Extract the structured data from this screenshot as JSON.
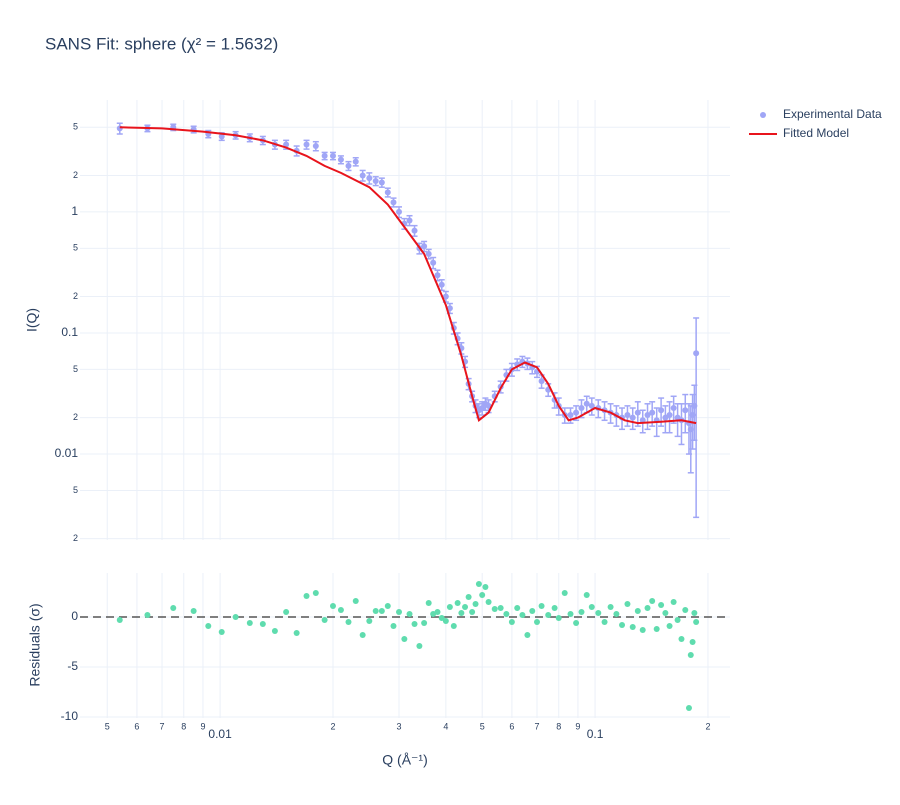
{
  "chart_data": [
    {
      "type": "scatter",
      "title": "SANS Fit: sphere (χ² = 1.5632)",
      "y_label": "I(Q)",
      "log_x": true,
      "log_y": true,
      "grid": true,
      "legend": "top-right",
      "xlim": [
        0.00423,
        0.229
      ],
      "ylim": [
        0.00195,
        8.4
      ],
      "yticks": [
        5,
        2,
        1,
        {
          "value": 0.5,
          "label": "5"
        },
        {
          "value": 0.2,
          "label": "2"
        },
        0.1,
        {
          "value": 0.05,
          "label": "5"
        },
        {
          "value": 0.02,
          "label": "2"
        },
        0.01,
        {
          "value": 0.005,
          "label": "5"
        },
        {
          "value": 0.002,
          "label": "2"
        }
      ],
      "series": [
        {
          "name": "Experimental Data",
          "color": "#a0a6f6",
          "x": [
            0.0054,
            0.0064,
            0.0075,
            0.0085,
            0.0093,
            0.0101,
            0.011,
            0.012,
            0.013,
            0.014,
            0.015,
            0.016,
            0.017,
            0.018,
            0.019,
            0.02,
            0.021,
            0.022,
            0.023,
            0.024,
            0.025,
            0.026,
            0.027,
            0.028,
            0.029,
            0.03,
            0.031,
            0.032,
            0.033,
            0.034,
            0.035,
            0.036,
            0.037,
            0.038,
            0.039,
            0.04,
            0.041,
            0.042,
            0.043,
            0.044,
            0.045,
            0.046,
            0.047,
            0.048,
            0.049,
            0.05,
            0.051,
            0.052,
            0.054,
            0.056,
            0.058,
            0.06,
            0.062,
            0.064,
            0.066,
            0.068,
            0.07,
            0.072,
            0.075,
            0.078,
            0.08,
            0.083,
            0.086,
            0.089,
            0.092,
            0.095,
            0.098,
            0.102,
            0.106,
            0.11,
            0.114,
            0.118,
            0.122,
            0.126,
            0.13,
            0.134,
            0.138,
            0.142,
            0.146,
            0.15,
            0.154,
            0.158,
            0.162,
            0.166,
            0.17,
            0.174,
            0.178,
            0.18,
            0.182,
            0.184,
            0.186
          ],
          "values": [
            4.9,
            4.9,
            5.0,
            4.8,
            4.4,
            4.2,
            4.3,
            4.1,
            3.9,
            3.6,
            3.6,
            3.2,
            3.6,
            3.5,
            2.9,
            2.9,
            2.7,
            2.4,
            2.6,
            2.0,
            1.9,
            1.8,
            1.75,
            1.45,
            1.2,
            1.0,
            0.8,
            0.85,
            0.7,
            0.5,
            0.52,
            0.45,
            0.38,
            0.3,
            0.25,
            0.2,
            0.16,
            0.11,
            0.09,
            0.075,
            0.058,
            0.038,
            0.03,
            0.025,
            0.023,
            0.024,
            0.026,
            0.025,
            0.03,
            0.036,
            0.045,
            0.05,
            0.055,
            0.058,
            0.056,
            0.052,
            0.048,
            0.04,
            0.034,
            0.028,
            0.025,
            0.021,
            0.021,
            0.022,
            0.024,
            0.026,
            0.025,
            0.024,
            0.023,
            0.022,
            0.021,
            0.02,
            0.021,
            0.02,
            0.022,
            0.019,
            0.021,
            0.022,
            0.019,
            0.023,
            0.02,
            0.021,
            0.024,
            0.02,
            0.019,
            0.023,
            0.018,
            0.016,
            0.021,
            0.025,
            0.068
          ],
          "errors": [
            0.5,
            0.3,
            0.3,
            0.3,
            0.3,
            0.3,
            0.3,
            0.3,
            0.3,
            0.3,
            0.3,
            0.3,
            0.3,
            0.3,
            0.2,
            0.2,
            0.2,
            0.2,
            0.2,
            0.2,
            0.2,
            0.15,
            0.15,
            0.12,
            0.1,
            0.1,
            0.08,
            0.08,
            0.07,
            0.05,
            0.05,
            0.04,
            0.04,
            0.03,
            0.025,
            0.02,
            0.015,
            0.012,
            0.01,
            0.008,
            0.006,
            0.004,
            0.003,
            0.003,
            0.003,
            0.003,
            0.003,
            0.003,
            0.003,
            0.004,
            0.005,
            0.006,
            0.006,
            0.006,
            0.006,
            0.006,
            0.005,
            0.005,
            0.004,
            0.004,
            0.004,
            0.003,
            0.003,
            0.003,
            0.004,
            0.004,
            0.004,
            0.004,
            0.004,
            0.004,
            0.004,
            0.004,
            0.004,
            0.004,
            0.005,
            0.004,
            0.005,
            0.005,
            0.005,
            0.006,
            0.005,
            0.006,
            0.006,
            0.006,
            0.007,
            0.008,
            0.008,
            0.009,
            0.01,
            0.012,
            0.065
          ]
        },
        {
          "name": "Fitted Model",
          "type": "line",
          "color": "#e8141c",
          "x": [
            0.0054,
            0.007,
            0.009,
            0.011,
            0.013,
            0.015,
            0.017,
            0.019,
            0.021,
            0.025,
            0.028,
            0.031,
            0.035,
            0.04,
            0.044,
            0.047,
            0.049,
            0.052,
            0.056,
            0.06,
            0.065,
            0.07,
            0.075,
            0.08,
            0.085,
            0.09,
            0.1,
            0.11,
            0.12,
            0.13,
            0.15,
            0.17,
            0.186
          ],
          "values": [
            5.0,
            4.9,
            4.6,
            4.3,
            3.9,
            3.4,
            2.9,
            2.4,
            2.1,
            1.6,
            1.15,
            0.75,
            0.45,
            0.17,
            0.065,
            0.03,
            0.019,
            0.022,
            0.035,
            0.05,
            0.057,
            0.052,
            0.038,
            0.025,
            0.019,
            0.02,
            0.024,
            0.022,
            0.019,
            0.018,
            0.0185,
            0.019,
            0.018
          ]
        }
      ]
    },
    {
      "type": "scatter",
      "y_label": "Residuals (σ)",
      "x_label": "Q (Å⁻¹)",
      "log_x": true,
      "grid": true,
      "xlim": [
        0.00423,
        0.229
      ],
      "ylim": [
        -10.1,
        4.4
      ],
      "xticks": [
        {
          "value": 0.005,
          "label": "5"
        },
        {
          "value": 0.006,
          "label": "6"
        },
        {
          "value": 0.007,
          "label": "7"
        },
        {
          "value": 0.008,
          "label": "8"
        },
        {
          "value": 0.009,
          "label": "9"
        },
        0.01,
        {
          "value": 0.02,
          "label": "2"
        },
        {
          "value": 0.03,
          "label": "3"
        },
        {
          "value": 0.04,
          "label": "4"
        },
        {
          "value": 0.05,
          "label": "5"
        },
        {
          "value": 0.06,
          "label": "6"
        },
        {
          "value": 0.07,
          "label": "7"
        },
        {
          "value": 0.08,
          "label": "8"
        },
        {
          "value": 0.09,
          "label": "9"
        },
        0.1,
        {
          "value": 0.2,
          "label": "2"
        }
      ],
      "yticks": [
        0,
        -5,
        -10
      ],
      "series": [
        {
          "color": "#5fdcae",
          "x": [
            0.0054,
            0.0064,
            0.0075,
            0.0085,
            0.0093,
            0.0101,
            0.011,
            0.012,
            0.013,
            0.014,
            0.015,
            0.016,
            0.017,
            0.018,
            0.019,
            0.02,
            0.021,
            0.022,
            0.023,
            0.024,
            0.025,
            0.026,
            0.027,
            0.028,
            0.029,
            0.03,
            0.031,
            0.032,
            0.033,
            0.034,
            0.035,
            0.036,
            0.037,
            0.038,
            0.039,
            0.04,
            0.041,
            0.042,
            0.043,
            0.044,
            0.045,
            0.046,
            0.047,
            0.048,
            0.049,
            0.05,
            0.051,
            0.052,
            0.054,
            0.056,
            0.058,
            0.06,
            0.062,
            0.064,
            0.066,
            0.068,
            0.07,
            0.072,
            0.075,
            0.078,
            0.08,
            0.083,
            0.086,
            0.089,
            0.092,
            0.095,
            0.098,
            0.102,
            0.106,
            0.11,
            0.114,
            0.118,
            0.122,
            0.126,
            0.13,
            0.134,
            0.138,
            0.142,
            0.146,
            0.15,
            0.154,
            0.158,
            0.162,
            0.166,
            0.17,
            0.174,
            0.178,
            0.18,
            0.182,
            0.184,
            0.186
          ],
          "values": [
            -0.3,
            0.2,
            0.9,
            0.6,
            -0.9,
            -1.5,
            0,
            -0.6,
            -0.7,
            -1.4,
            0.5,
            -1.6,
            2.1,
            2.4,
            -0.3,
            1.1,
            0.7,
            -0.5,
            1.6,
            -1.8,
            -0.4,
            0.6,
            0.6,
            1.1,
            -0.9,
            0.5,
            -2.2,
            0.3,
            -0.7,
            -2.9,
            -0.6,
            1.4,
            0.3,
            0.5,
            -0.1,
            -0.4,
            1.0,
            -0.9,
            1.4,
            0.4,
            1.0,
            2.0,
            0.5,
            1.3,
            3.3,
            2.2,
            3.0,
            1.5,
            0.8,
            0.9,
            0.3,
            -0.5,
            0.9,
            0.2,
            -1.8,
            0.6,
            -0.5,
            1.1,
            0.2,
            0.9,
            -0.1,
            2.4,
            0.3,
            -0.6,
            0.5,
            2.2,
            1.0,
            0.4,
            -0.5,
            1.0,
            0.3,
            -0.8,
            1.3,
            -1.0,
            0.6,
            -1.3,
            0.9,
            1.6,
            -1.2,
            1.2,
            0.4,
            -0.9,
            1.5,
            -0.3,
            -2.2,
            0.7,
            -9.1,
            -3.8,
            -2.5,
            0.4,
            -0.5
          ]
        }
      ]
    }
  ]
}
